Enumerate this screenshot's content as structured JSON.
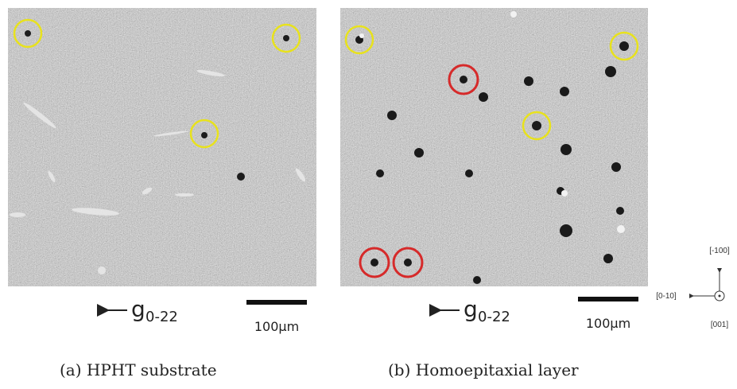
{
  "panels": [
    {
      "arrow_label": "g",
      "arrow_subscript": "0-22",
      "scale_bar": "100μm",
      "caption": "(a) HPHT substrate"
    },
    {
      "arrow_label": "g",
      "arrow_subscript": "0-22",
      "scale_bar": "100μm",
      "caption": "(b) Homoepitaxial layer"
    }
  ],
  "orientation": {
    "up": "[-100]",
    "left": "[0-10]",
    "normal": "[001]"
  }
}
